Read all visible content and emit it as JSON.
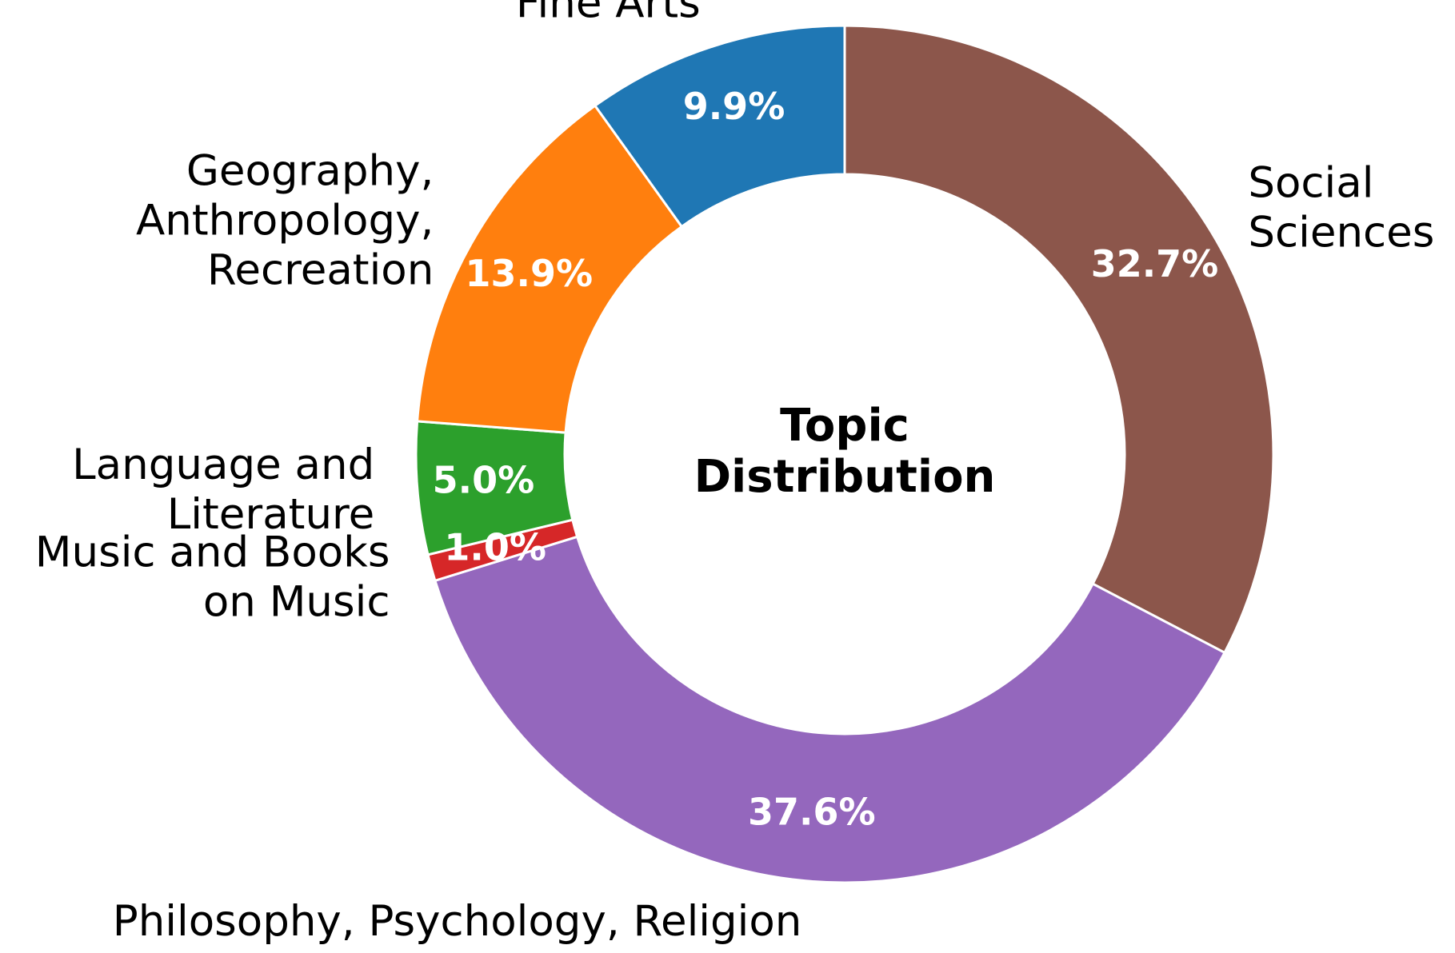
{
  "chart_data": {
    "type": "donut",
    "title": "Topic\nDistribution",
    "categories": [
      "Social\nSciences",
      "Philosophy, Psychology, Religion",
      "Music and Books\non Music",
      "Language and\nLiterature",
      "Geography,\nAnthropology,\nRecreation",
      "Fine Arts"
    ],
    "values": [
      32.7,
      37.6,
      1.0,
      5.0,
      13.9,
      9.9
    ],
    "value_labels": [
      "32.7%",
      "37.6%",
      "1.0%",
      "5.0%",
      "13.9%",
      "9.9%"
    ],
    "colors": [
      "#8c564b",
      "#9467bd",
      "#d62728",
      "#2ca02c",
      "#ff7f0e",
      "#1f77b4"
    ]
  }
}
